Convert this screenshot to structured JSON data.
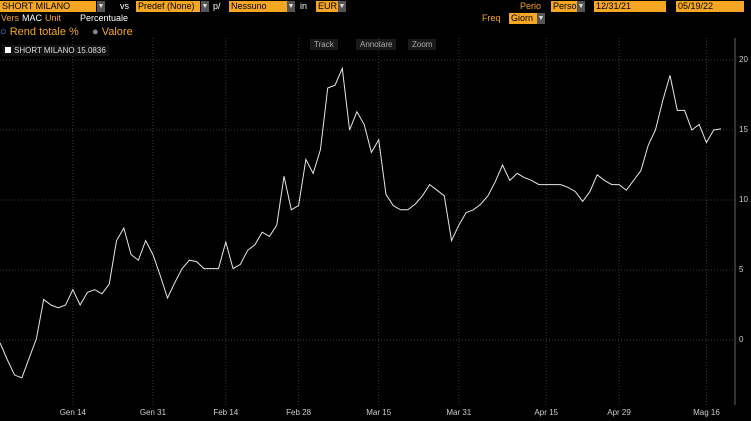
{
  "toolbar": {
    "security": "SHORT MILANO",
    "vs_label": "vs",
    "vs_value": "Predef (None)",
    "per_label": "p/",
    "per_value": "Nessuno",
    "in_label": "in",
    "currency": "EUR",
    "period_label": "Perio",
    "period_value": "Perso",
    "start_date": "12/31/21",
    "end_date": "05/19/22",
    "vers_label": "Vers",
    "vers_value": "MAC",
    "unit_label": "Unit",
    "unit_value": "Percentuale",
    "freq_label": "Freq",
    "freq_value": "Giorn",
    "radio_total": "Rend totale %",
    "radio_value": "Valore",
    "buttons": [
      "Track",
      "Annotare",
      "Zoom"
    ]
  },
  "chart_data": {
    "type": "line",
    "categories": [
      null,
      null,
      null,
      null,
      null,
      null,
      null,
      null,
      null,
      null,
      "Gen 14",
      null,
      null,
      null,
      null,
      null,
      null,
      null,
      null,
      null,
      null,
      "Gen 31",
      null,
      null,
      null,
      null,
      null,
      null,
      null,
      null,
      null,
      "Feb 14",
      null,
      null,
      null,
      null,
      null,
      null,
      null,
      null,
      null,
      "Feb 28",
      null,
      null,
      null,
      null,
      null,
      null,
      null,
      null,
      null,
      null,
      "Mar 15",
      null,
      null,
      null,
      null,
      null,
      null,
      null,
      null,
      null,
      null,
      "Mar 31",
      null,
      null,
      null,
      null,
      null,
      null,
      null,
      null,
      null,
      null,
      null,
      "Apr 15",
      null,
      null,
      null,
      null,
      null,
      null,
      null,
      null,
      null,
      "Apr 29",
      null,
      null,
      null,
      null,
      null,
      null,
      null,
      null,
      null,
      null,
      null,
      "Mag 16",
      null,
      null
    ],
    "series": [
      {
        "name": "SHORT MILANO",
        "color": "#e6e6e6",
        "values": [
          -0.2,
          -1.4,
          -2.5,
          -2.7,
          -1.3,
          0.1,
          2.9,
          2.5,
          2.3,
          2.5,
          3.6,
          2.5,
          3.4,
          3.6,
          3.3,
          4.0,
          7.1,
          8.0,
          6.1,
          5.7,
          7.1,
          6.1,
          4.6,
          3.0,
          4.1,
          5.1,
          5.7,
          5.6,
          5.1,
          5.1,
          5.1,
          7.0,
          5.1,
          5.4,
          6.4,
          6.8,
          7.7,
          7.4,
          8.2,
          11.7,
          9.3,
          9.6,
          12.9,
          11.9,
          13.6,
          18.0,
          18.2,
          19.4,
          15.0,
          16.3,
          15.4,
          13.4,
          14.3,
          10.4,
          9.6,
          9.3,
          9.3,
          9.7,
          10.3,
          11.1,
          10.7,
          10.3,
          7.1,
          8.2,
          9.1,
          9.3,
          9.7,
          10.3,
          11.3,
          12.5,
          11.4,
          11.9,
          11.6,
          11.4,
          11.1,
          11.1,
          11.1,
          11.1,
          10.9,
          10.6,
          9.9,
          10.6,
          11.8,
          11.4,
          11.1,
          11.1,
          10.7,
          11.4,
          12.1,
          13.9,
          15.0,
          17.1,
          18.9,
          16.4,
          16.4,
          15.0,
          15.4,
          14.1,
          15.0,
          15.0836
        ]
      }
    ],
    "ylim": [
      -4.64,
      21.57
    ],
    "yticks": [
      0,
      5,
      10,
      15,
      20
    ],
    "grid": true
  }
}
